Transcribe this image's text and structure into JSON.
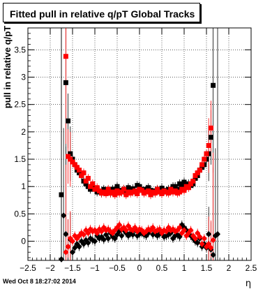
{
  "timestamp": "Wed Oct  8 18:27:02 2014",
  "chart_data": {
    "type": "scatter",
    "title": "Fitted pull in relative q/pT  Global Tracks",
    "xlabel": "η",
    "ylabel": "pull in relative q/pT",
    "xlim": [
      -2.5,
      2.5
    ],
    "ylim": [
      -0.35,
      3.9
    ],
    "grid": true,
    "x_ticks": [
      -2.5,
      -2,
      -1.5,
      -1,
      -0.5,
      0,
      0.5,
      1,
      1.5,
      2,
      2.5
    ],
    "x_tick_labels": [
      "−2.5",
      "−2",
      "−1.5",
      "−1",
      "−0.5",
      "0",
      "0.5",
      "1",
      "1.5",
      "2",
      "2.5"
    ],
    "y_ticks": [
      0,
      0.5,
      1,
      1.5,
      2,
      2.5,
      3,
      3.5
    ],
    "y_tick_labels": [
      "0",
      "0.5",
      "1",
      "1.5",
      "2",
      "2.5",
      "3",
      "3.5"
    ],
    "series": [
      {
        "marker": "square",
        "color": "#000000",
        "x": [
          -1.75,
          -1.65,
          -1.6,
          -1.55,
          -1.5,
          -1.45,
          -1.4,
          -1.35,
          -1.3,
          -1.25,
          -1.2,
          -1.15,
          -1.1,
          -1.05,
          -1.0,
          -0.95,
          -0.9,
          -0.85,
          -0.8,
          -0.75,
          -0.7,
          -0.65,
          -0.6,
          -0.55,
          -0.5,
          -0.45,
          -0.4,
          -0.35,
          -0.3,
          -0.25,
          -0.2,
          -0.15,
          -0.1,
          -0.05,
          0.0,
          0.05,
          0.1,
          0.15,
          0.2,
          0.25,
          0.3,
          0.35,
          0.4,
          0.45,
          0.5,
          0.55,
          0.6,
          0.65,
          0.7,
          0.75,
          0.8,
          0.85,
          0.9,
          0.95,
          1.0,
          1.05,
          1.1,
          1.15,
          1.2,
          1.25,
          1.3,
          1.35,
          1.4,
          1.45,
          1.5,
          1.55,
          1.6,
          1.65
        ],
        "y": [
          0.85,
          2.9,
          2.2,
          1.6,
          1.5,
          1.4,
          1.3,
          1.25,
          1.2,
          1.1,
          1.05,
          1.0,
          0.95,
          1.0,
          0.95,
          0.9,
          0.92,
          0.88,
          0.95,
          0.9,
          0.93,
          0.88,
          0.95,
          0.92,
          1.0,
          0.93,
          0.9,
          0.95,
          0.88,
          0.98,
          0.92,
          0.96,
          0.9,
          1.02,
          1.0,
          0.95,
          0.9,
          0.95,
          0.98,
          0.93,
          0.88,
          0.92,
          0.95,
          0.9,
          0.97,
          0.93,
          0.9,
          0.95,
          0.92,
          1.0,
          1.0,
          0.95,
          1.05,
          1.02,
          1.08,
          1.0,
          1.05,
          1.02,
          1.05,
          1.15,
          1.2,
          1.3,
          1.35,
          1.4,
          1.5,
          1.6,
          1.9,
          2.85
        ]
      },
      {
        "marker": "square",
        "color": "#ff0000",
        "x": [
          -1.65,
          -1.6,
          -1.55,
          -1.5,
          -1.45,
          -1.4,
          -1.35,
          -1.3,
          -1.25,
          -1.2,
          -1.15,
          -1.1,
          -1.05,
          -1.0,
          -0.95,
          -0.9,
          -0.85,
          -0.8,
          -0.75,
          -0.7,
          -0.65,
          -0.6,
          -0.55,
          -0.5,
          -0.45,
          -0.4,
          -0.35,
          -0.3,
          -0.25,
          -0.2,
          -0.15,
          -0.1,
          -0.05,
          0.0,
          0.05,
          0.1,
          0.15,
          0.2,
          0.25,
          0.3,
          0.35,
          0.4,
          0.45,
          0.5,
          0.55,
          0.6,
          0.65,
          0.7,
          0.75,
          0.8,
          0.85,
          0.9,
          0.95,
          1.0,
          1.05,
          1.1,
          1.15,
          1.2,
          1.25,
          1.3,
          1.35,
          1.4,
          1.45,
          1.5,
          1.55,
          1.6
        ],
        "y": [
          3.38,
          1.55,
          1.5,
          1.45,
          1.4,
          1.35,
          1.3,
          1.2,
          1.25,
          1.1,
          1.15,
          1.0,
          1.05,
          0.95,
          0.98,
          0.92,
          0.88,
          0.9,
          0.87,
          0.95,
          0.88,
          0.9,
          0.85,
          0.92,
          0.88,
          0.9,
          0.95,
          0.85,
          0.9,
          0.88,
          0.9,
          0.92,
          0.87,
          0.95,
          0.93,
          0.88,
          0.9,
          0.92,
          0.85,
          0.9,
          0.88,
          0.95,
          0.9,
          0.87,
          0.92,
          0.9,
          0.88,
          0.95,
          0.9,
          0.92,
          0.88,
          0.9,
          0.95,
          0.93,
          1.0,
          0.98,
          1.05,
          1.1,
          1.2,
          1.25,
          1.3,
          1.4,
          1.5,
          1.6,
          1.75,
          2.07
        ]
      },
      {
        "marker": "diamond",
        "color": "#000000",
        "x": [
          -1.75,
          -1.7,
          -1.65,
          -1.6,
          -1.55,
          -1.5,
          -1.45,
          -1.4,
          -1.35,
          -1.3,
          -1.25,
          -1.2,
          -1.15,
          -1.1,
          -1.05,
          -1.0,
          -0.95,
          -0.9,
          -0.85,
          -0.8,
          -0.75,
          -0.7,
          -0.65,
          -0.6,
          -0.55,
          -0.5,
          -0.45,
          -0.4,
          -0.35,
          -0.3,
          -0.25,
          -0.2,
          -0.15,
          -0.1,
          -0.05,
          0.0,
          0.05,
          0.1,
          0.15,
          0.2,
          0.25,
          0.3,
          0.35,
          0.4,
          0.45,
          0.5,
          0.55,
          0.6,
          0.65,
          0.7,
          0.75,
          0.8,
          0.85,
          0.9,
          0.95,
          1.0,
          1.05,
          1.1,
          1.15,
          1.2,
          1.25,
          1.3,
          1.35,
          1.4,
          1.45,
          1.5,
          1.55,
          1.6,
          1.65,
          1.7,
          1.75
        ],
        "y": [
          -0.33,
          0.47,
          0.13,
          -0.1,
          0.03,
          -0.2,
          -0.12,
          -0.05,
          -0.1,
          0.0,
          -0.05,
          0.02,
          -0.03,
          0.05,
          0.02,
          0.0,
          0.1,
          0.05,
          0.08,
          0.03,
          0.12,
          0.05,
          0.15,
          0.08,
          0.05,
          0.12,
          0.18,
          0.1,
          0.2,
          0.15,
          0.1,
          0.15,
          0.12,
          0.2,
          0.1,
          0.13,
          0.15,
          0.12,
          0.1,
          0.15,
          0.2,
          0.12,
          0.15,
          0.1,
          0.13,
          0.15,
          0.08,
          0.1,
          0.12,
          0.15,
          0.05,
          0.1,
          0.12,
          0.08,
          0.3,
          0.25,
          0.2,
          0.15,
          0.1,
          0.05,
          0.0,
          -0.03,
          0.05,
          -0.1,
          -0.05,
          -0.12,
          0.13,
          -0.15,
          -0.25,
          0.1,
          0.13
        ]
      },
      {
        "marker": "diamond",
        "color": "#ff0000",
        "x": [
          -1.65,
          -1.6,
          -1.55,
          -1.5,
          -1.45,
          -1.4,
          -1.35,
          -1.3,
          -1.25,
          -1.2,
          -1.15,
          -1.1,
          -1.05,
          -1.0,
          -0.95,
          -0.9,
          -0.85,
          -0.8,
          -0.75,
          -0.7,
          -0.65,
          -0.6,
          -0.55,
          -0.5,
          -0.45,
          -0.4,
          -0.35,
          -0.3,
          -0.25,
          -0.2,
          -0.15,
          -0.1,
          -0.05,
          0.0,
          0.05,
          0.1,
          0.15,
          0.2,
          0.25,
          0.3,
          0.35,
          0.4,
          0.45,
          0.5,
          0.55,
          0.6,
          0.65,
          0.7,
          0.75,
          0.8,
          0.85,
          0.9,
          0.95,
          1.0,
          1.05,
          1.1,
          1.15,
          1.2,
          1.25,
          1.3,
          1.35,
          1.4,
          1.45,
          1.5,
          1.55,
          1.6,
          1.65
        ],
        "y": [
          -0.2,
          -0.1,
          0.05,
          0.0,
          0.1,
          0.05,
          0.1,
          0.15,
          0.12,
          0.2,
          0.15,
          0.22,
          0.18,
          0.2,
          0.15,
          0.22,
          0.18,
          0.25,
          0.2,
          0.22,
          0.18,
          0.15,
          0.2,
          0.25,
          0.3,
          0.22,
          0.25,
          0.2,
          0.28,
          0.22,
          0.2,
          0.25,
          0.18,
          0.22,
          0.2,
          0.15,
          0.18,
          0.22,
          0.2,
          0.25,
          0.18,
          0.2,
          0.22,
          0.15,
          0.2,
          0.18,
          0.25,
          0.2,
          0.22,
          0.18,
          0.2,
          0.25,
          0.15,
          0.2,
          0.1,
          0.15,
          0.2,
          0.1,
          0.05,
          0.15,
          0.08,
          -0.05,
          0.05,
          -0.1,
          -0.05,
          -0.12,
          0.02
        ]
      }
    ]
  }
}
